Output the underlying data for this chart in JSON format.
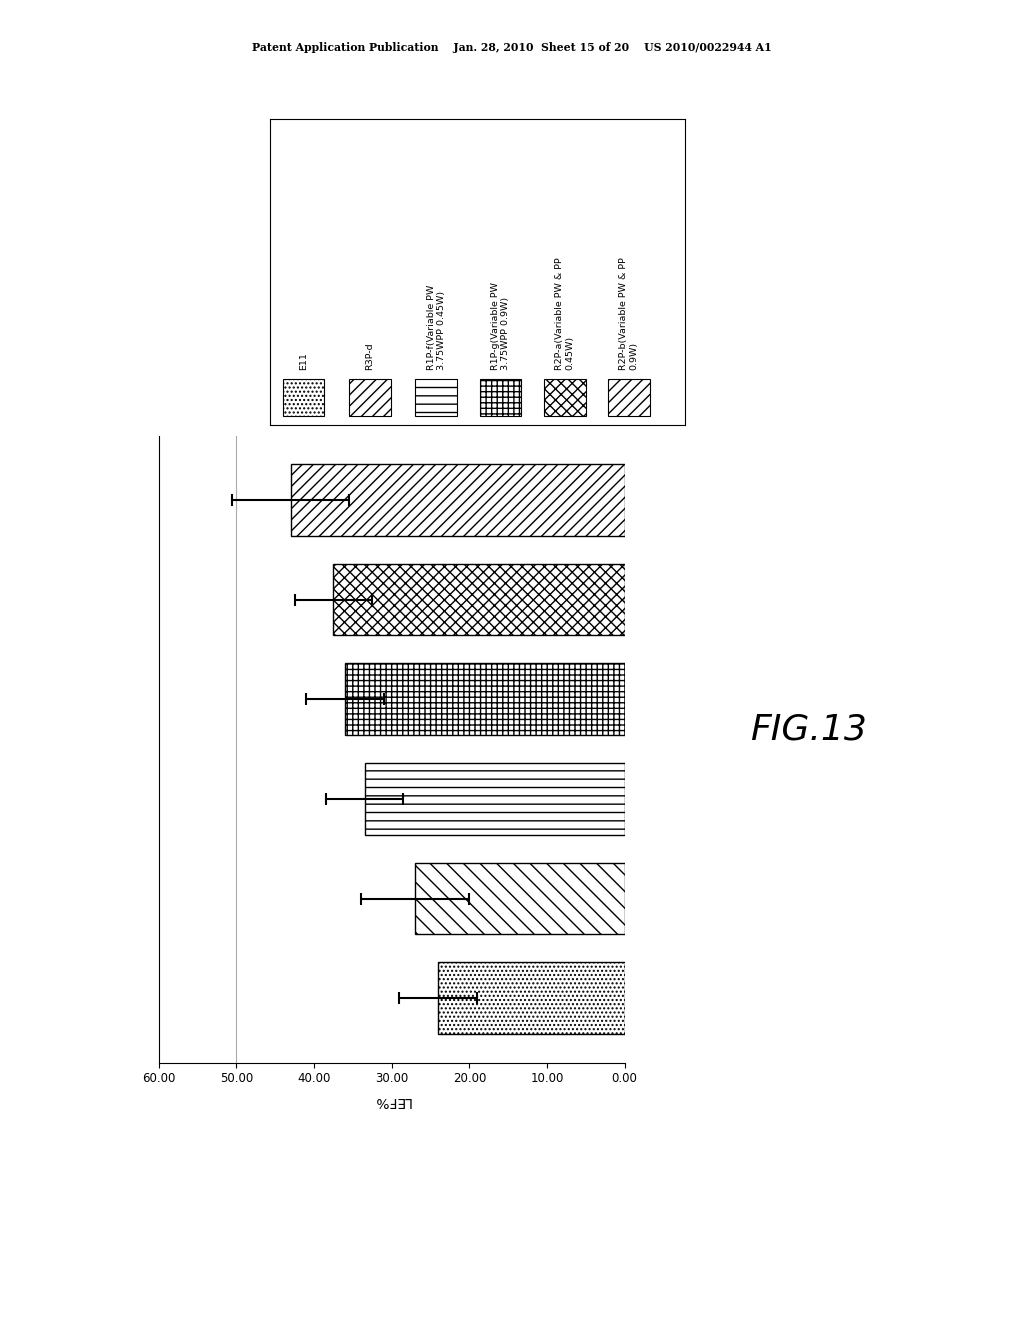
{
  "header": "Patent Application Publication    Jan. 28, 2010  Sheet 15 of 20    US 2010/0022944 A1",
  "fig_label": "FIG.13",
  "xlabel": "LEF%",
  "xlim_display": [
    60,
    0
  ],
  "xlim_data": [
    0,
    60
  ],
  "xticks": [
    60.0,
    50.0,
    40.0,
    30.0,
    20.0,
    10.0,
    0.0
  ],
  "reference_line": 50.0,
  "bars_top_to_bottom": [
    {
      "value": 43.0,
      "error": 7.5,
      "hatch": "///"
    },
    {
      "value": 37.5,
      "error": 5.0,
      "hatch": "xxx"
    },
    {
      "value": 36.0,
      "error": 5.0,
      "hatch": "+++"
    },
    {
      "value": 33.5,
      "error": 5.0,
      "hatch": "--"
    },
    {
      "value": 27.0,
      "error": 7.0,
      "hatch": "\\\\"
    },
    {
      "value": 24.0,
      "error": 5.0,
      "hatch": "...."
    }
  ],
  "legend_items": [
    {
      "label1": "E11",
      "label2": "",
      "hatch": "...."
    },
    {
      "label1": "R3P-d",
      "label2": "",
      "hatch": "///"
    },
    {
      "label1": "R1P-f(Variable PW",
      "label2": "3.75WPP 0.45W)",
      "hatch": "--"
    },
    {
      "label1": "R1P-g(Variable PW",
      "label2": "3.75WPP 0.9W)",
      "hatch": "+++"
    },
    {
      "label1": "R2P-a(Variable PW & PP",
      "label2": "0.45W)",
      "hatch": "xxx"
    },
    {
      "label1": "R2P-b(Variable PW & PP",
      "label2": "0.9W)",
      "hatch": "///"
    }
  ]
}
